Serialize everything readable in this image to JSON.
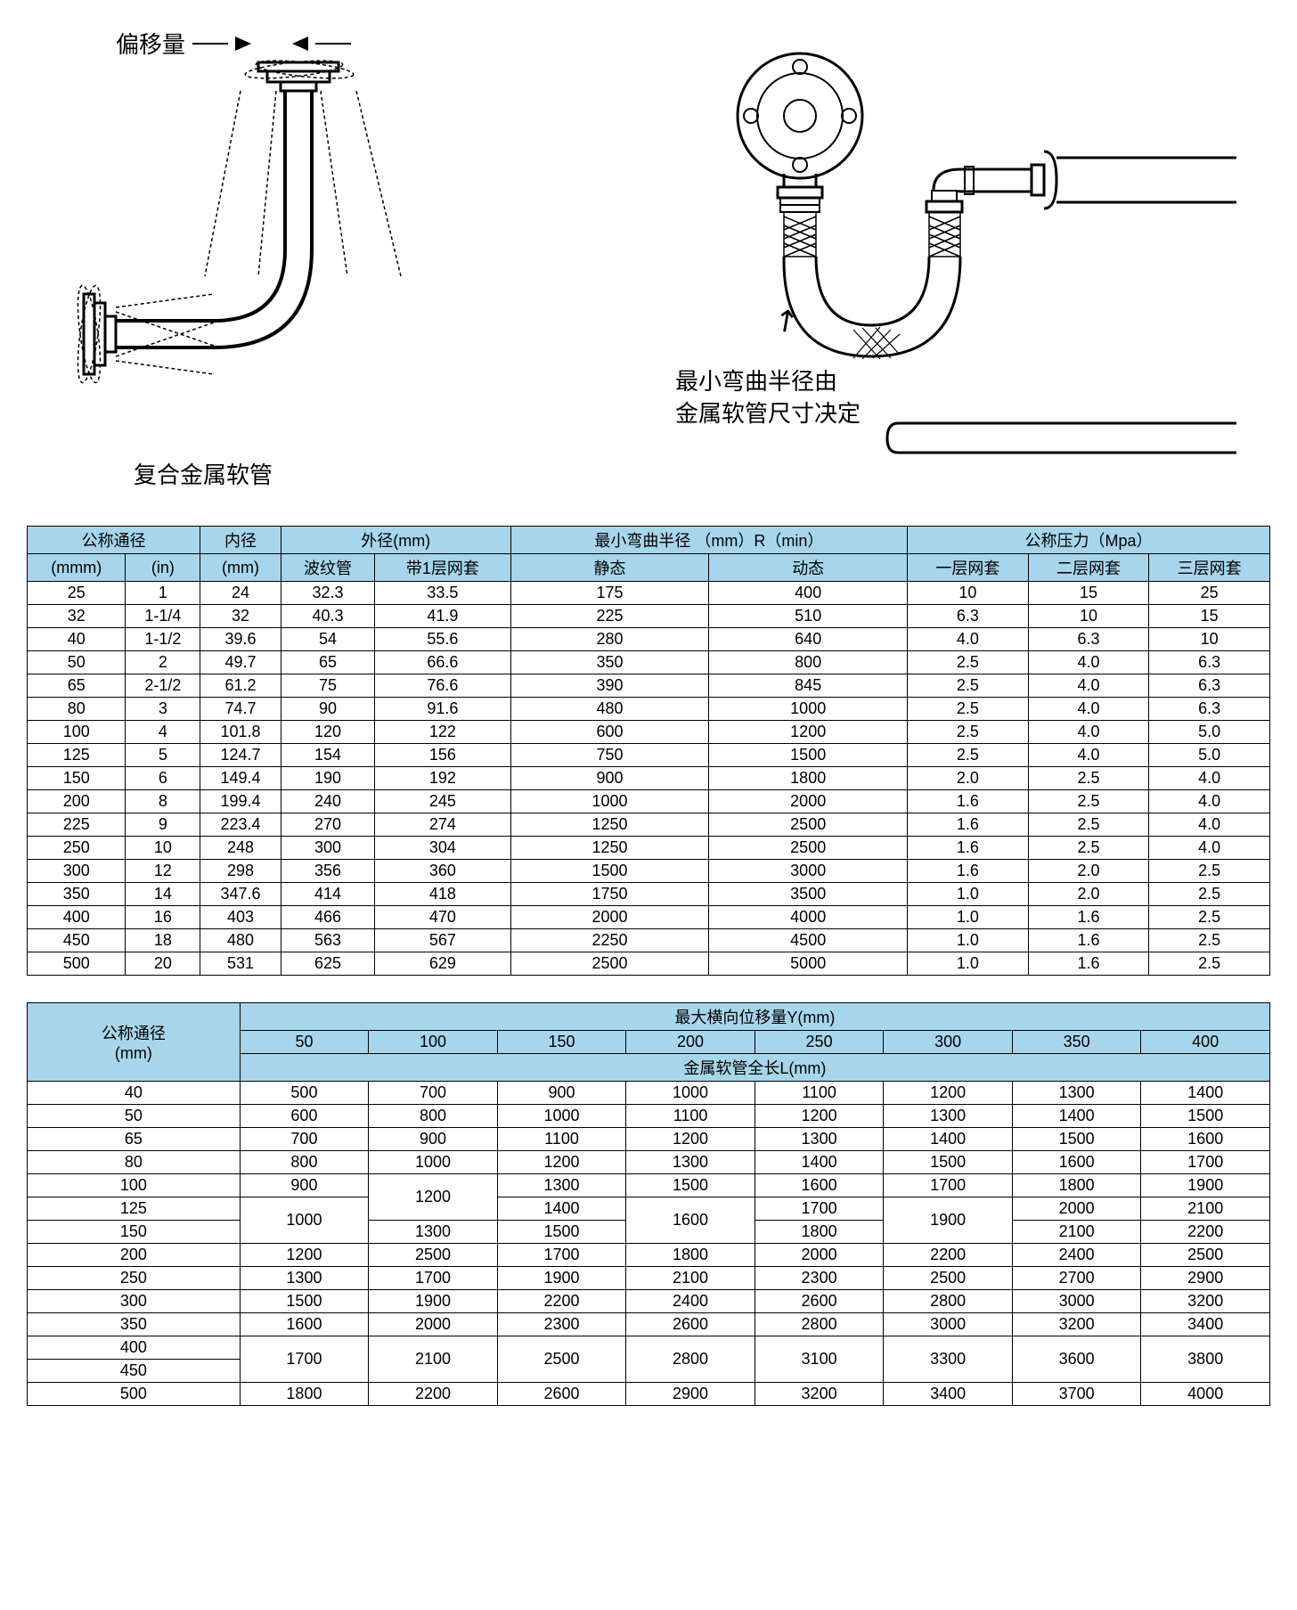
{
  "diagrams": {
    "offset_label": "偏移量",
    "left_caption": "复合金属软管",
    "right_caption_line1": "最小弯曲半径由",
    "right_caption_line2": "金属软管尺寸决定"
  },
  "table1": {
    "headers": {
      "nominal_dia": "公称通径",
      "inner_dia": "内径",
      "outer_dia": "外径(mm)",
      "min_bend": "最小弯曲半径 （mm）R（min）",
      "nominal_pressure": "公称压力（Mpa）",
      "mm": "(mmm)",
      "in": "(in)",
      "mm2": "(mm)",
      "corrugated": "波纹管",
      "one_layer": "带1层网套",
      "static": "静态",
      "dynamic": "动态",
      "layer1": "一层网套",
      "layer2": "二层网套",
      "layer3": "三层网套"
    },
    "rows": [
      [
        "25",
        "1",
        "24",
        "32.3",
        "33.5",
        "175",
        "400",
        "10",
        "15",
        "25"
      ],
      [
        "32",
        "1-1/4",
        "32",
        "40.3",
        "41.9",
        "225",
        "510",
        "6.3",
        "10",
        "15"
      ],
      [
        "40",
        "1-1/2",
        "39.6",
        "54",
        "55.6",
        "280",
        "640",
        "4.0",
        "6.3",
        "10"
      ],
      [
        "50",
        "2",
        "49.7",
        "65",
        "66.6",
        "350",
        "800",
        "2.5",
        "4.0",
        "6.3"
      ],
      [
        "65",
        "2-1/2",
        "61.2",
        "75",
        "76.6",
        "390",
        "845",
        "2.5",
        "4.0",
        "6.3"
      ],
      [
        "80",
        "3",
        "74.7",
        "90",
        "91.6",
        "480",
        "1000",
        "2.5",
        "4.0",
        "6.3"
      ],
      [
        "100",
        "4",
        "101.8",
        "120",
        "122",
        "600",
        "1200",
        "2.5",
        "4.0",
        "5.0"
      ],
      [
        "125",
        "5",
        "124.7",
        "154",
        "156",
        "750",
        "1500",
        "2.5",
        "4.0",
        "5.0"
      ],
      [
        "150",
        "6",
        "149.4",
        "190",
        "192",
        "900",
        "1800",
        "2.0",
        "2.5",
        "4.0"
      ],
      [
        "200",
        "8",
        "199.4",
        "240",
        "245",
        "1000",
        "2000",
        "1.6",
        "2.5",
        "4.0"
      ],
      [
        "225",
        "9",
        "223.4",
        "270",
        "274",
        "1250",
        "2500",
        "1.6",
        "2.5",
        "4.0"
      ],
      [
        "250",
        "10",
        "248",
        "300",
        "304",
        "1250",
        "2500",
        "1.6",
        "2.5",
        "4.0"
      ],
      [
        "300",
        "12",
        "298",
        "356",
        "360",
        "1500",
        "3000",
        "1.6",
        "2.0",
        "2.5"
      ],
      [
        "350",
        "14",
        "347.6",
        "414",
        "418",
        "1750",
        "3500",
        "1.0",
        "2.0",
        "2.5"
      ],
      [
        "400",
        "16",
        "403",
        "466",
        "470",
        "2000",
        "4000",
        "1.0",
        "1.6",
        "2.5"
      ],
      [
        "450",
        "18",
        "480",
        "563",
        "567",
        "2250",
        "4500",
        "1.0",
        "1.6",
        "2.5"
      ],
      [
        "500",
        "20",
        "531",
        "625",
        "629",
        "2500",
        "5000",
        "1.0",
        "1.6",
        "2.5"
      ]
    ]
  },
  "table2": {
    "headers": {
      "nominal_dia": "公称通径\n(mm)",
      "max_lateral": "最大横向位移量Y(mm)",
      "total_length": "金属软管全长L(mm)",
      "cols": [
        "50",
        "100",
        "150",
        "200",
        "250",
        "300",
        "350",
        "400"
      ]
    },
    "rows": [
      {
        "dn": "40",
        "vals": [
          "500",
          "700",
          "900",
          "1000",
          "1100",
          "1200",
          "1300",
          "1400"
        ],
        "span": 1
      },
      {
        "dn": "50",
        "vals": [
          "600",
          "800",
          "1000",
          "1100",
          "1200",
          "1300",
          "1400",
          "1500"
        ],
        "span": 1
      },
      {
        "dn": "65",
        "vals": [
          "700",
          "900",
          "1100",
          "1200",
          "1300",
          "1400",
          "1500",
          "1600"
        ],
        "span": 1
      },
      {
        "dn": "80",
        "vals": [
          "800",
          "1000",
          "1200",
          "1300",
          "1400",
          "1500",
          "1600",
          "1700"
        ],
        "span": 1
      },
      {
        "dn": "100",
        "vals": [
          "900",
          "",
          "1300",
          "1500",
          "1600",
          "1700",
          "1800",
          "1900"
        ],
        "merge": {
          "col": 1,
          "rowspan": 3,
          "val": "1000"
        },
        "merge2": {
          "col": 2,
          "rowspan": 2,
          "val": "1200",
          "startRow": 0
        }
      },
      {
        "dn": "125",
        "vals": [
          "",
          "",
          "1400",
          "",
          "1700",
          "",
          "2000",
          "2100"
        ]
      },
      {
        "dn": "150",
        "vals": [
          "",
          "1300",
          "1500",
          "",
          "1800",
          "",
          "2100",
          "2200"
        ]
      },
      {
        "dn": "200",
        "vals": [
          "1200",
          "2500",
          "1700",
          "1800",
          "2000",
          "2200",
          "2400",
          "2500"
        ],
        "span": 1
      },
      {
        "dn": "250",
        "vals": [
          "1300",
          "1700",
          "1900",
          "2100",
          "2300",
          "2500",
          "2700",
          "2900"
        ],
        "span": 1
      },
      {
        "dn": "300",
        "vals": [
          "1500",
          "1900",
          "2200",
          "2400",
          "2600",
          "2800",
          "3000",
          "3200"
        ],
        "span": 1
      },
      {
        "dn": "350",
        "vals": [
          "1600",
          "2000",
          "2300",
          "2600",
          "2800",
          "3000",
          "3200",
          "3400"
        ],
        "span": 1
      },
      {
        "dn": "400",
        "vals": [
          "",
          "",
          "",
          "",
          "",
          "",
          "",
          ""
        ]
      },
      {
        "dn": "450",
        "vals": [
          "",
          "",
          "",
          "",
          "",
          "",
          "",
          ""
        ]
      },
      {
        "dn": "500",
        "vals": [
          "1800",
          "2200",
          "2600",
          "2900",
          "3200",
          "3400",
          "3700",
          "4000"
        ],
        "span": 1
      }
    ],
    "merged_400_450": [
      "1700",
      "2100",
      "2500",
      "2800",
      "3100",
      "3300",
      "3600",
      "3800"
    ],
    "merged_125_150_200": "1600",
    "merged_125_150_300": "1900"
  },
  "colors": {
    "header_bg": "#a7d6ec",
    "border": "#000000",
    "text": "#000000"
  }
}
